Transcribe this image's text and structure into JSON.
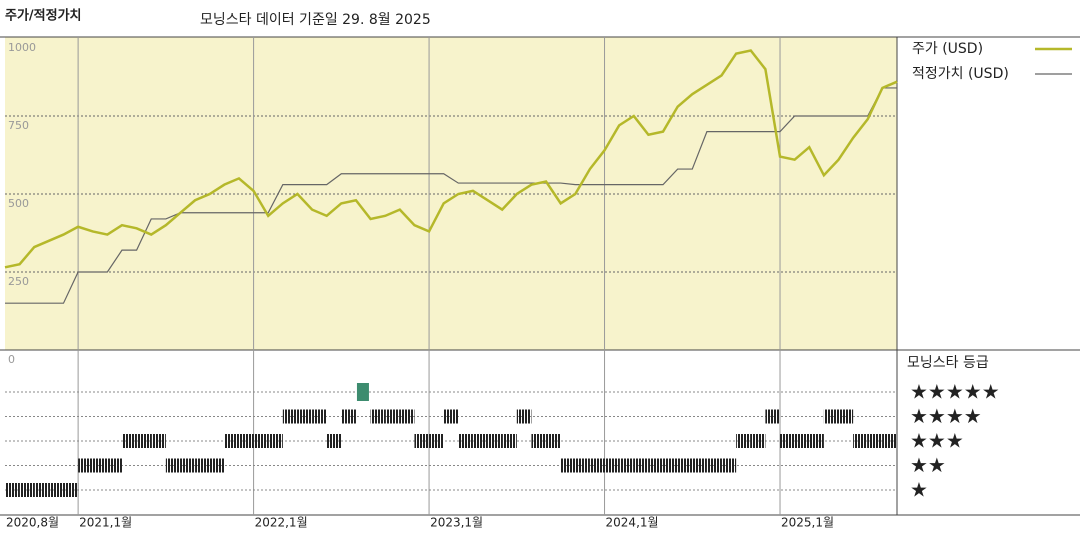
{
  "chart_data": {
    "type": "line",
    "title": "주가/적정가치",
    "subtitle": "모닝스타 데이터 기준일 29. 8월 2025",
    "x": [
      "2020-08",
      "2020-09",
      "2020-10",
      "2020-11",
      "2020-12",
      "2021-01",
      "2021-02",
      "2021-03",
      "2021-04",
      "2021-05",
      "2021-06",
      "2021-07",
      "2021-08",
      "2021-09",
      "2021-10",
      "2021-11",
      "2021-12",
      "2022-01",
      "2022-02",
      "2022-03",
      "2022-04",
      "2022-05",
      "2022-06",
      "2022-07",
      "2022-08",
      "2022-09",
      "2022-10",
      "2022-11",
      "2022-12",
      "2023-01",
      "2023-02",
      "2023-03",
      "2023-04",
      "2023-05",
      "2023-06",
      "2023-07",
      "2023-08",
      "2023-09",
      "2023-10",
      "2023-11",
      "2023-12",
      "2024-01",
      "2024-02",
      "2024-03",
      "2024-04",
      "2024-05",
      "2024-06",
      "2024-07",
      "2024-08",
      "2024-09",
      "2024-10",
      "2024-11",
      "2024-12",
      "2025-01",
      "2025-02",
      "2025-03",
      "2025-04",
      "2025-05",
      "2025-06",
      "2025-07",
      "2025-08",
      "2025-09"
    ],
    "series": [
      {
        "name": "주가 (USD)",
        "color": "#b5b82a",
        "values": [
          265,
          275,
          330,
          350,
          370,
          395,
          380,
          370,
          400,
          390,
          370,
          400,
          440,
          480,
          500,
          530,
          550,
          510,
          430,
          470,
          500,
          450,
          430,
          470,
          480,
          420,
          430,
          450,
          400,
          380,
          470,
          500,
          510,
          480,
          450,
          500,
          530,
          540,
          470,
          500,
          580,
          640,
          720,
          750,
          690,
          700,
          780,
          820,
          850,
          880,
          950,
          960,
          900,
          620,
          610,
          650,
          560,
          610,
          680,
          740,
          840,
          860
        ]
      },
      {
        "name": "적정가치 (USD)",
        "color": "#666666",
        "values": [
          150,
          150,
          150,
          150,
          150,
          250,
          250,
          250,
          320,
          320,
          420,
          420,
          440,
          440,
          440,
          440,
          440,
          440,
          440,
          530,
          530,
          530,
          530,
          565,
          565,
          565,
          565,
          565,
          565,
          565,
          565,
          535,
          535,
          535,
          535,
          535,
          535,
          535,
          535,
          530,
          530,
          530,
          530,
          530,
          530,
          530,
          580,
          580,
          700,
          700,
          700,
          700,
          700,
          700,
          750,
          750,
          750,
          750,
          750,
          750,
          840,
          840
        ]
      }
    ],
    "xlim": [
      "2020-08",
      "2025-09"
    ],
    "xticks": [
      {
        "value": "2020-08",
        "label": "2020,8월"
      },
      {
        "value": "2021-01",
        "label": "2021,1월"
      },
      {
        "value": "2022-01",
        "label": "2022,1월"
      },
      {
        "value": "2023-01",
        "label": "2023,1월"
      },
      {
        "value": "2024-01",
        "label": "2024,1월"
      },
      {
        "value": "2025-01",
        "label": "2025,1월"
      }
    ],
    "ylim": [
      0,
      1000
    ],
    "yticks": [
      0,
      250,
      500,
      750,
      1000
    ],
    "grid": true,
    "rating": {
      "title": "모닝스타 등급",
      "labels": [
        "★",
        "★★",
        "★★★",
        "★★★★",
        "★★★★★"
      ],
      "color": "#222222",
      "highlight_color": "#3d8c6f",
      "values": [
        1,
        1,
        1,
        1,
        1,
        2,
        2,
        2,
        3,
        3,
        3,
        2,
        2,
        2,
        2,
        3,
        3,
        3,
        3,
        4,
        4,
        4,
        3,
        4,
        5,
        4,
        4,
        4,
        3,
        3,
        4,
        3,
        3,
        3,
        3,
        4,
        3,
        3,
        2,
        2,
        2,
        2,
        2,
        2,
        2,
        2,
        2,
        2,
        2,
        2,
        3,
        3,
        4,
        3,
        3,
        3,
        4,
        4,
        3,
        3,
        3,
        3
      ]
    }
  }
}
